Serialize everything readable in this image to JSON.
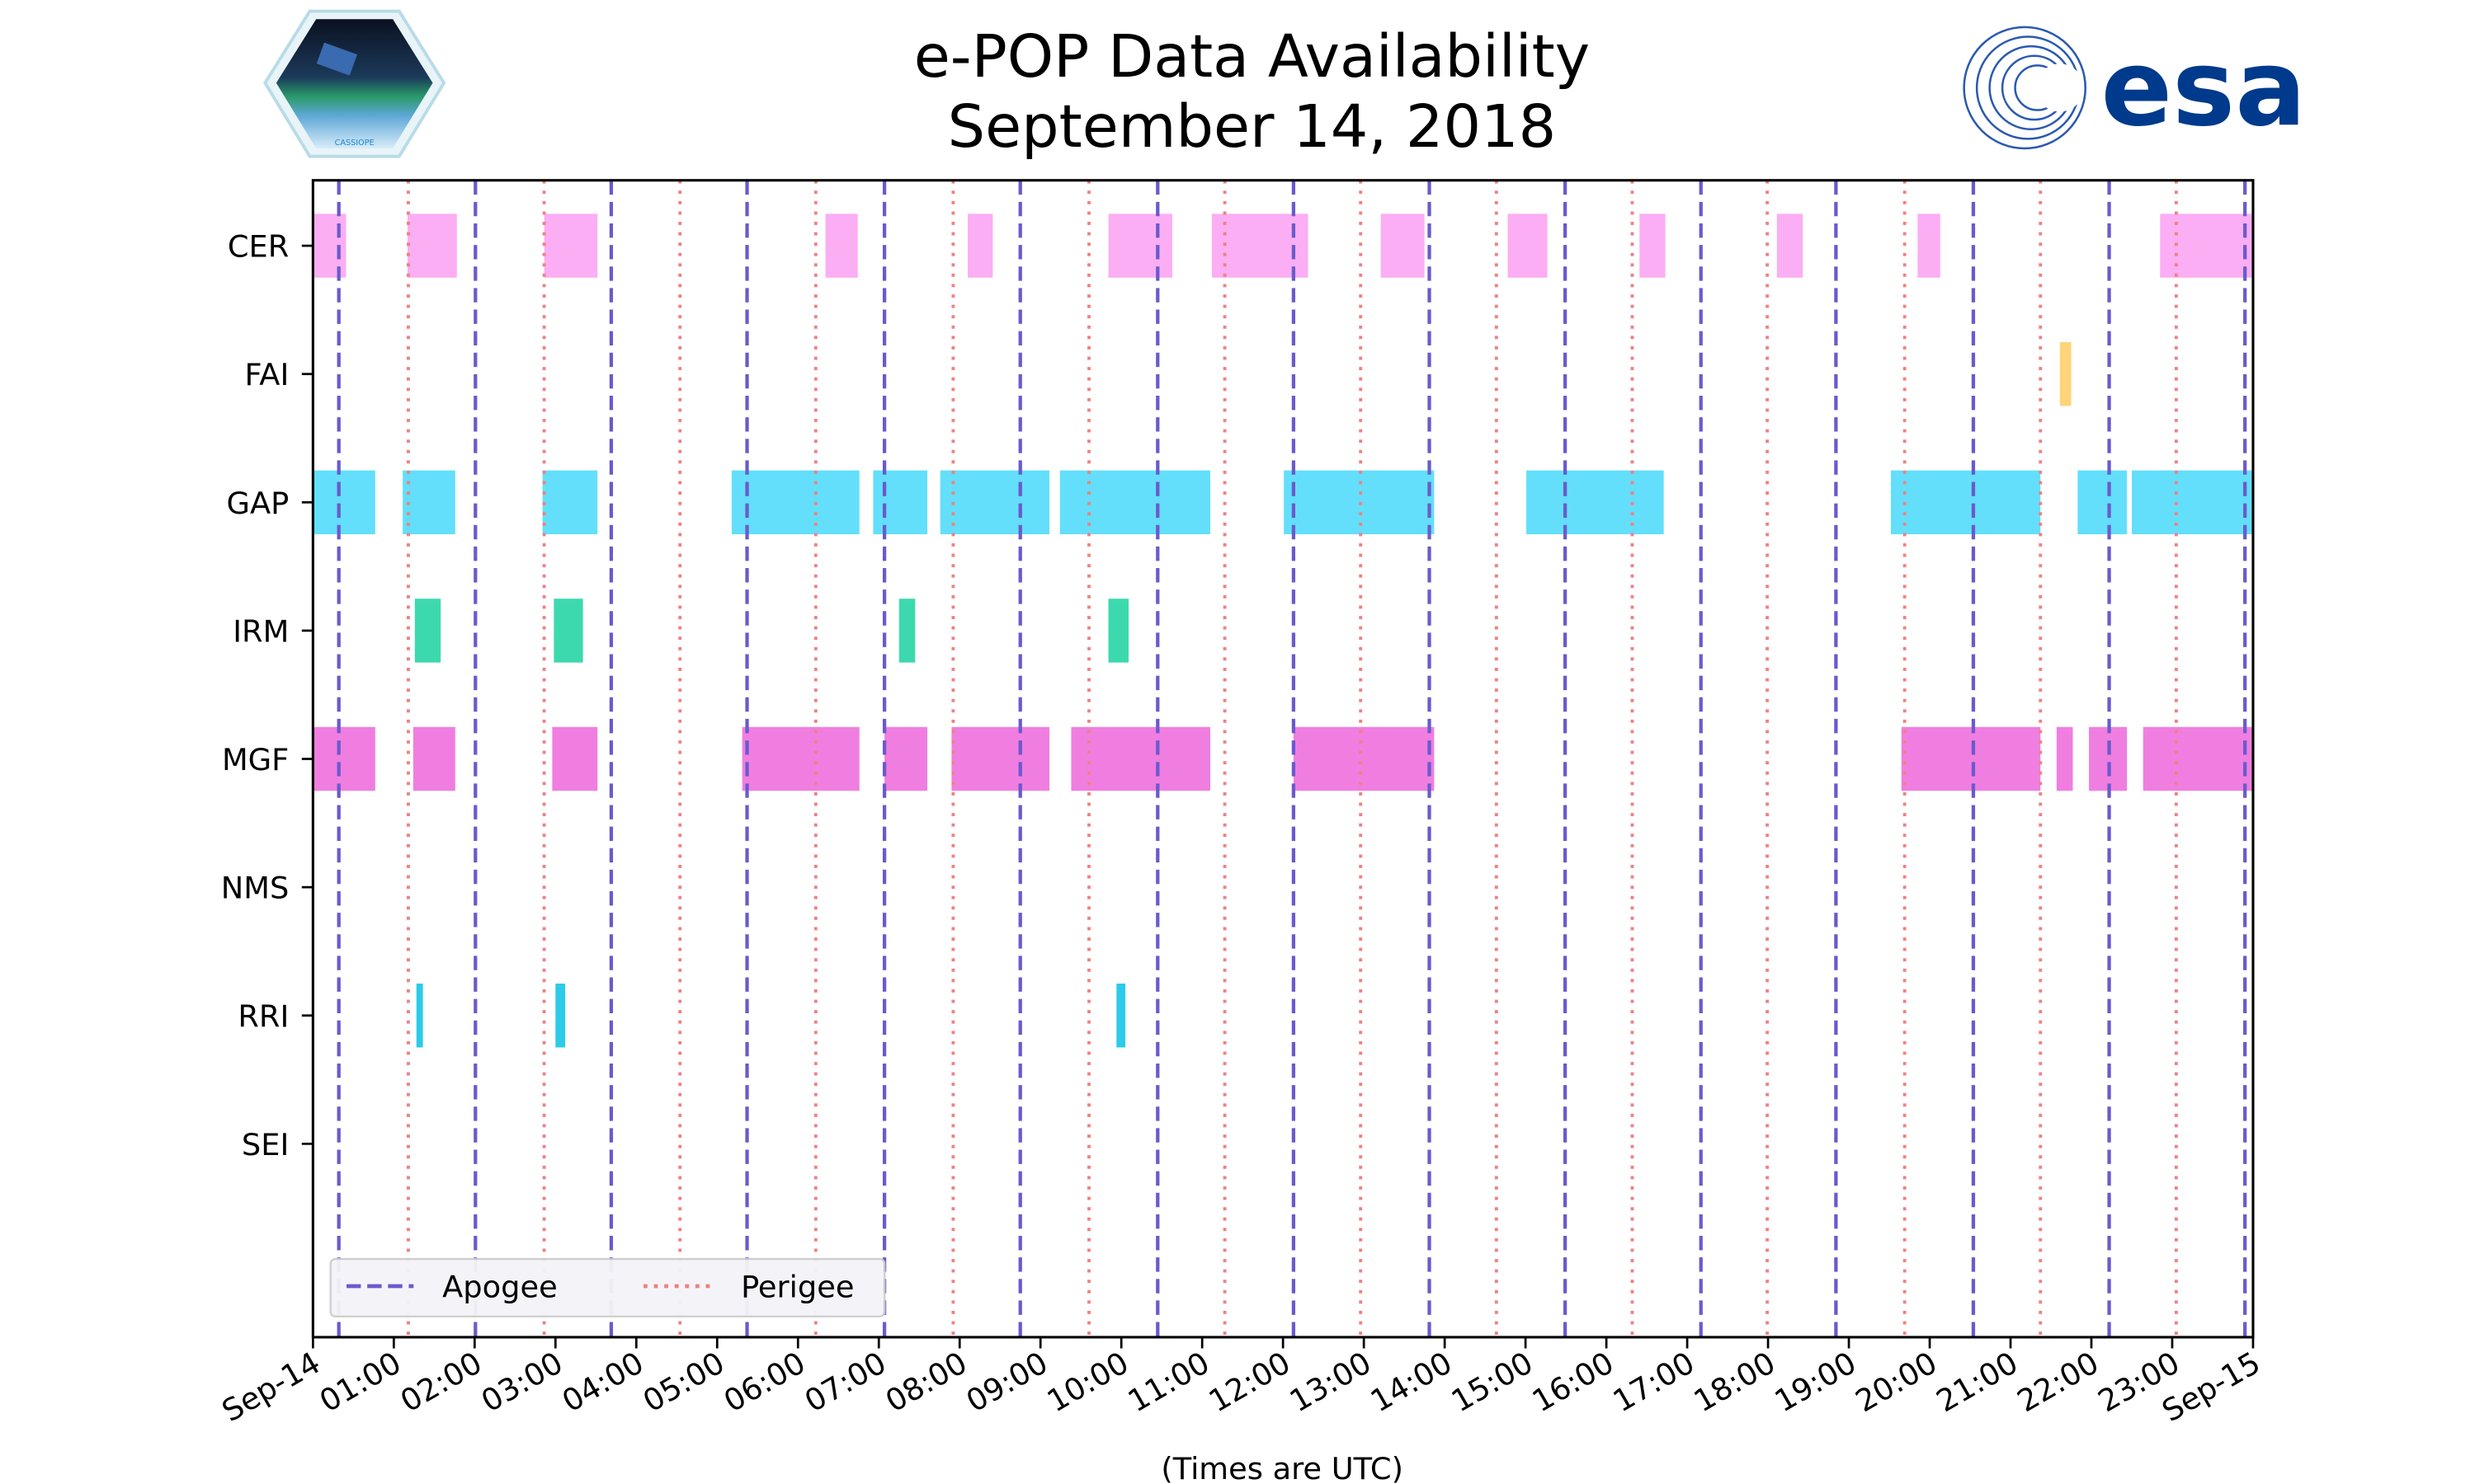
{
  "header": {
    "title_line1": "e-POP Data Availability",
    "title_line2": "September 14, 2018",
    "left_logo": "CASSIOPE",
    "right_logo": "esa"
  },
  "chart_data": {
    "type": "timeline",
    "title": "e-POP Data Availability September 14, 2018",
    "xlabel": "(Times are UTC)",
    "ylabel": "",
    "xlim_hours": [
      0,
      24
    ],
    "x_tick_labels": [
      "Sep-14",
      "01:00",
      "02:00",
      "03:00",
      "04:00",
      "05:00",
      "06:00",
      "07:00",
      "08:00",
      "09:00",
      "10:00",
      "11:00",
      "12:00",
      "13:00",
      "14:00",
      "15:00",
      "16:00",
      "17:00",
      "18:00",
      "19:00",
      "20:00",
      "21:00",
      "22:00",
      "23:00",
      "Sep-15"
    ],
    "categories": [
      "CER",
      "FAI",
      "GAP",
      "IRM",
      "MGF",
      "NMS",
      "RRI",
      "SEI"
    ],
    "colors": {
      "CER": "#fbaef3",
      "FAI": "#ffd47a",
      "GAP": "#63dffb",
      "IRM": "#3dd9ae",
      "MGF": "#f07ee0",
      "NMS": "#999999",
      "RRI": "#2ccbe8",
      "SEI": "#999999"
    },
    "series": [
      {
        "name": "CER",
        "intervals_hours": [
          [
            0,
            0.41
          ],
          [
            1.17,
            1.78
          ],
          [
            2.86,
            3.52
          ],
          [
            6.34,
            6.74
          ],
          [
            8.1,
            8.41
          ],
          [
            9.84,
            10.63
          ],
          [
            11.12,
            12.31
          ],
          [
            13.21,
            13.75
          ],
          [
            14.78,
            15.27
          ],
          [
            16.41,
            16.73
          ],
          [
            18.11,
            18.43
          ],
          [
            19.85,
            20.13
          ],
          [
            22.85,
            24
          ]
        ]
      },
      {
        "name": "FAI",
        "intervals_hours": [
          [
            21.61,
            21.75
          ]
        ]
      },
      {
        "name": "GAP",
        "intervals_hours": [
          [
            0,
            0.77
          ],
          [
            1.11,
            1.76
          ],
          [
            2.84,
            3.52
          ],
          [
            5.18,
            6.76
          ],
          [
            6.93,
            7.6
          ],
          [
            7.76,
            9.11
          ],
          [
            9.24,
            11.1
          ],
          [
            12.01,
            13.87
          ],
          [
            15.01,
            16.71
          ],
          [
            19.52,
            21.37
          ],
          [
            21.83,
            22.44
          ],
          [
            22.5,
            24
          ]
        ]
      },
      {
        "name": "IRM",
        "intervals_hours": [
          [
            1.26,
            1.58
          ],
          [
            2.98,
            3.34
          ],
          [
            7.25,
            7.45
          ],
          [
            9.84,
            10.09
          ]
        ]
      },
      {
        "name": "MGF",
        "intervals_hours": [
          [
            0,
            0.77
          ],
          [
            1.24,
            1.76
          ],
          [
            2.96,
            3.52
          ],
          [
            5.31,
            6.76
          ],
          [
            7.07,
            7.6
          ],
          [
            7.9,
            9.11
          ],
          [
            9.38,
            11.1
          ],
          [
            12.13,
            13.87
          ],
          [
            19.65,
            21.37
          ],
          [
            21.57,
            21.77
          ],
          [
            21.97,
            22.44
          ],
          [
            22.64,
            24
          ]
        ]
      },
      {
        "name": "NMS",
        "intervals_hours": []
      },
      {
        "name": "RRI",
        "intervals_hours": [
          [
            1.28,
            1.36
          ],
          [
            3.0,
            3.12
          ],
          [
            9.94,
            10.05
          ]
        ]
      },
      {
        "name": "SEI",
        "intervals_hours": []
      }
    ],
    "apogee_hours": [
      0.32,
      2.01,
      3.69,
      5.37,
      7.07,
      8.75,
      10.45,
      12.13,
      13.81,
      15.49,
      17.17,
      18.84,
      20.54,
      22.22,
      23.9
    ],
    "perigee_hours": [
      1.18,
      2.86,
      4.54,
      6.22,
      7.92,
      9.6,
      11.28,
      12.96,
      14.64,
      16.32,
      17.99,
      19.69,
      21.37,
      23.05
    ],
    "legend": {
      "placement": "lower-left",
      "entries": [
        {
          "label": "Apogee",
          "style": "dashed",
          "color": "#6a5acd"
        },
        {
          "label": "Perigee",
          "style": "dotted",
          "color": "#f08080"
        }
      ]
    },
    "grid": false
  }
}
